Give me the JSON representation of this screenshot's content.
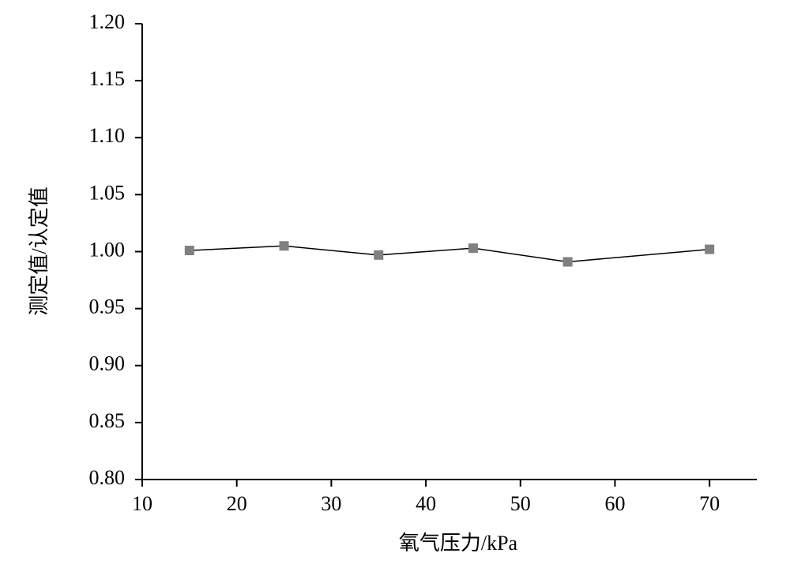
{
  "chart_data": {
    "type": "line",
    "x_label": "氧气压力/kPa",
    "y_label": "测定值/认定值",
    "x": [
      15,
      25,
      35,
      45,
      55,
      70
    ],
    "series": [
      {
        "color": "#808080",
        "line_color": "#000000",
        "values": [
          1.001,
          1.005,
          0.997,
          1.003,
          0.991,
          1.002
        ]
      }
    ],
    "xlim": [
      10,
      75
    ],
    "xticks": [
      10,
      20,
      30,
      40,
      50,
      60,
      70
    ],
    "ylim": [
      0.8,
      1.2
    ],
    "yticks": [
      {
        "value": 0.8,
        "label": "0.80"
      },
      {
        "value": 0.85,
        "label": "0.85"
      },
      {
        "value": 0.9,
        "label": "0.90"
      },
      {
        "value": 0.95,
        "label": "0.95"
      },
      {
        "value": 1.0,
        "label": "1.00"
      },
      {
        "value": 1.05,
        "label": "1.05"
      },
      {
        "value": 1.1,
        "label": "1.10"
      },
      {
        "value": 1.15,
        "label": "1.15"
      },
      {
        "value": 1.2,
        "label": "1.20"
      }
    ],
    "grid": false
  }
}
